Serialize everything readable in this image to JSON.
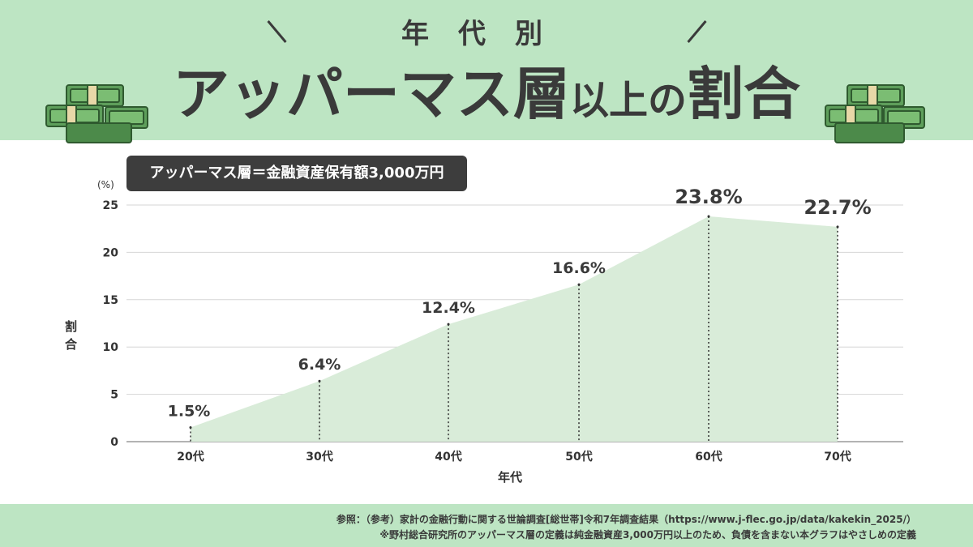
{
  "header": {
    "subtitle": "年代別",
    "title_main": "アッパーマス層",
    "title_rest_1": "以上の",
    "title_rest_2": "割合"
  },
  "definition": "アッパーマス層＝金融資産保有額3,000万円",
  "colors": {
    "header_bg": "#bde5c3",
    "area_fill": "#d9ecd9",
    "text": "#3a3a3a",
    "definition_bg": "#3d3d3d"
  },
  "chart_data": {
    "type": "area",
    "categories": [
      "20代",
      "30代",
      "40代",
      "50代",
      "60代",
      "70代"
    ],
    "values": [
      1.5,
      6.4,
      12.4,
      16.6,
      23.8,
      22.7
    ],
    "data_labels": [
      "1.5%",
      "6.4%",
      "12.4%",
      "16.6%",
      "23.8%",
      "22.7%"
    ],
    "xlabel": "年代",
    "ylabel": "割合",
    "yunit": "(%)",
    "ylim": [
      0,
      25
    ],
    "yticks": [
      0,
      5,
      10,
      15,
      20,
      25
    ],
    "grid": true
  },
  "footer": {
    "reference": "参照：（参考）家計の金融行動に関する世論調査[総世帯]令和7年調査結果（https://www.j-flec.go.jp/data/kakekin_2025/）",
    "note": "※野村総合研究所のアッパーマス層の定義は純金融資産3,000万円以上のため、負債を含まない本グラフはやさしめの定義"
  }
}
